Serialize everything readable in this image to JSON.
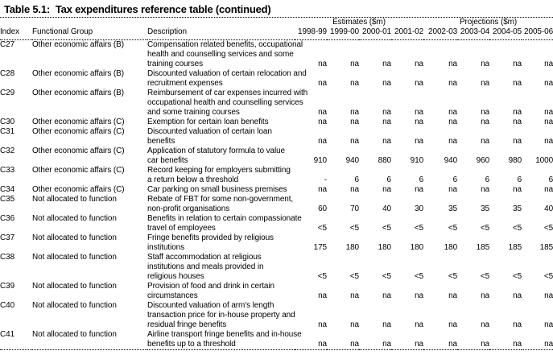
{
  "page": {
    "title": "Table 5.1:  Tax expenditures reference table (continued)"
  },
  "table": {
    "group_headers": [
      {
        "label": "Estimates ($m)",
        "span": 4
      },
      {
        "label": "Projections ($m)",
        "span": 4
      }
    ],
    "columns": [
      "Index",
      "Functional Group",
      "Description",
      "1998-99",
      "1999-00",
      "2000-01",
      "2001-02",
      "2002-03",
      "2003-04",
      "2004-05",
      "2005-06"
    ],
    "rows": [
      {
        "index": "C27",
        "group": "Other economic affairs (B)",
        "description": [
          "Compensation related benefits, occupational",
          "health and counselling services and some",
          "training courses"
        ],
        "values": [
          "na",
          "na",
          "na",
          "na",
          "na",
          "na",
          "na",
          "na"
        ]
      },
      {
        "index": "C28",
        "group": "Other economic affairs (B)",
        "description": [
          "Discounted valuation of certain relocation and",
          "recruitment expenses"
        ],
        "values": [
          "na",
          "na",
          "na",
          "na",
          "na",
          "na",
          "na",
          "na"
        ]
      },
      {
        "index": "C29",
        "group": "Other economic affairs (B)",
        "description": [
          "Reimbursement of car expenses incurred with",
          "occupational health and counselling services",
          "and some training courses"
        ],
        "values": [
          "na",
          "na",
          "na",
          "na",
          "na",
          "na",
          "na",
          "na"
        ]
      },
      {
        "index": "C30",
        "group": "Other economic affairs (C)",
        "description": [
          "Exemption for certain loan benefits"
        ],
        "values": [
          "na",
          "na",
          "na",
          "na",
          "na",
          "na",
          "na",
          "na"
        ]
      },
      {
        "index": "C31",
        "group": "Other economic affairs (C)",
        "description": [
          "Discounted valuation of certain loan",
          "benefits"
        ],
        "values": [
          "na",
          "na",
          "na",
          "na",
          "na",
          "na",
          "na",
          "na"
        ]
      },
      {
        "index": "C32",
        "group": "Other economic affairs (C)",
        "description": [
          "Application of statutory formula to value",
          "car benefits"
        ],
        "values": [
          "910",
          "940",
          "880",
          "910",
          "940",
          "960",
          "980",
          "1000"
        ]
      },
      {
        "index": "C33",
        "group": "Other economic affairs (C)",
        "description": [
          "Record keeping for employers submitting",
          "a return below a threshold"
        ],
        "values": [
          "-",
          "6",
          "6",
          "6",
          "6",
          "6",
          "6",
          "6"
        ]
      },
      {
        "index": "C34",
        "group": "Other economic affairs (C)",
        "description": [
          "Car parking on small business premises"
        ],
        "values": [
          "na",
          "na",
          "na",
          "na",
          "na",
          "na",
          "na",
          "na"
        ]
      },
      {
        "index": "C35",
        "group": "Not allocated to function",
        "description": [
          "Rebate of FBT for some non-government,",
          "non-profit organisations"
        ],
        "values": [
          "60",
          "70",
          "40",
          "30",
          "35",
          "35",
          "35",
          "40"
        ]
      },
      {
        "index": "C36",
        "group": "Not allocated to function",
        "description": [
          "Benefits in relation to certain compassionate",
          "travel of employees"
        ],
        "values": [
          "<5",
          "<5",
          "<5",
          "<5",
          "<5",
          "<5",
          "<5",
          "<5"
        ]
      },
      {
        "index": "C37",
        "group": "Not allocated to function",
        "description": [
          "Fringe benefits provided by religious",
          "institutions"
        ],
        "values": [
          "175",
          "180",
          "180",
          "180",
          "180",
          "185",
          "185",
          "185"
        ]
      },
      {
        "index": "C38",
        "group": "Not allocated to function",
        "description": [
          "Staff accommodation at religious",
          "institutions and meals provided in",
          "religious houses"
        ],
        "values": [
          "<5",
          "<5",
          "<5",
          "<5",
          "<5",
          "<5",
          "<5",
          "<5"
        ]
      },
      {
        "index": "C39",
        "group": "Not allocated to function",
        "description": [
          "Provision of food and drink in certain",
          "circumstances"
        ],
        "values": [
          "na",
          "na",
          "na",
          "na",
          "na",
          "na",
          "na",
          "na"
        ]
      },
      {
        "index": "C40",
        "group": "Not allocated to function",
        "description": [
          "Discounted valuation of arm's length",
          "transaction price for in-house property and",
          "residual fringe benefits"
        ],
        "values": [
          "na",
          "na",
          "na",
          "na",
          "na",
          "na",
          "na",
          "na"
        ]
      },
      {
        "index": "C41",
        "group": "Not allocated to function",
        "description": [
          "Airline transport fringe benefits and in-house",
          "benefits up to a threshold"
        ],
        "values": [
          "na",
          "na",
          "na",
          "na",
          "na",
          "na",
          "na",
          "na"
        ]
      }
    ]
  }
}
